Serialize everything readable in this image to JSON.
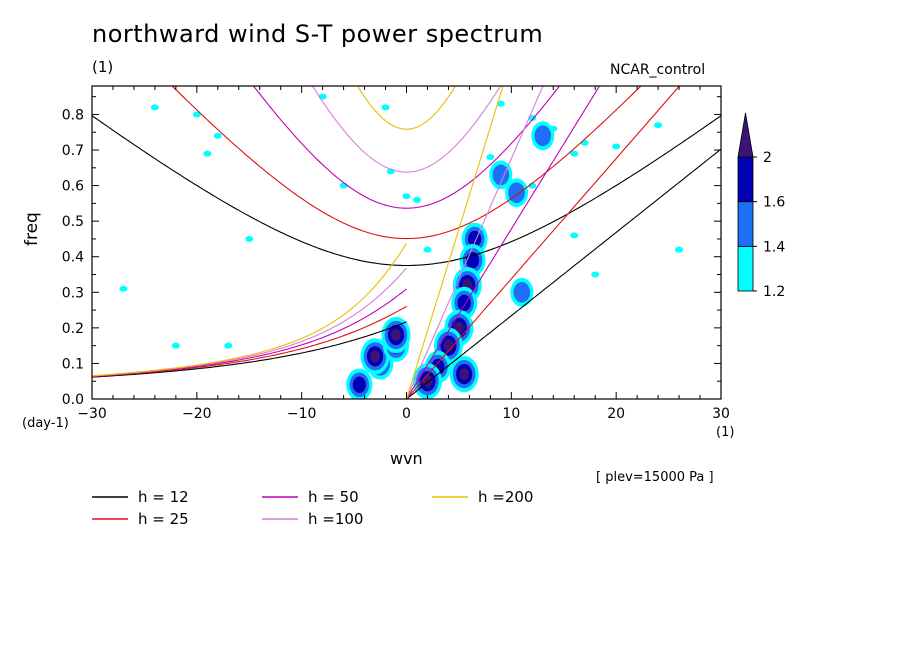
{
  "chart_data": {
    "type": "contour",
    "title": "northward wind S-T power spectrum",
    "subtitle_left": "(1)",
    "subtitle_right": "NCAR_control",
    "xlabel": "wvn",
    "ylabel": "freq",
    "x_units_left": "(day-1)",
    "x_units_right": "(1)",
    "plev_note": "[ plev=15000 Pa ]",
    "xlim": [
      -30,
      30
    ],
    "ylim": [
      0,
      0.88
    ],
    "xticks": [
      -30,
      -20,
      -10,
      0,
      10,
      20,
      30
    ],
    "xtick_labels": [
      "-30",
      "-20",
      "-10",
      "0",
      "10",
      "20",
      "30"
    ],
    "yticks": [
      0,
      0.1,
      0.2,
      0.3,
      0.4,
      0.5,
      0.6,
      0.7,
      0.8
    ],
    "ytick_labels": [
      "0.0",
      "0.1",
      "0.2",
      "0.3",
      "0.4",
      "0.5",
      "0.6",
      "0.7",
      "0.8"
    ],
    "colorbar": {
      "levels": [
        1.2,
        1.4,
        1.6,
        2
      ],
      "labels": [
        "1.2",
        "1.4",
        "1.6",
        "2"
      ],
      "colors": [
        "#00ffff",
        "#1e6ff5",
        "#0000b4",
        "#3c1478"
      ]
    },
    "series": [
      {
        "name": "h = 12",
        "color": "#000000"
      },
      {
        "name": "h = 25",
        "color": "#e01010"
      },
      {
        "name": "h = 50",
        "color": "#c000b8"
      },
      {
        "name": "h =100",
        "color": "#d77fdc"
      },
      {
        "name": "h =200",
        "color": "#e8c000"
      }
    ],
    "spectral_blobs": [
      {
        "k": 6.5,
        "f": 0.45,
        "level": 1.6
      },
      {
        "k": 6.3,
        "f": 0.39,
        "level": 1.6
      },
      {
        "k": 5.8,
        "f": 0.32,
        "level": 2
      },
      {
        "k": 5.5,
        "f": 0.27,
        "level": 1.6
      },
      {
        "k": 5.0,
        "f": 0.2,
        "level": 2
      },
      {
        "k": 4.0,
        "f": 0.15,
        "level": 2
      },
      {
        "k": 3.0,
        "f": 0.09,
        "level": 1.6
      },
      {
        "k": 2.0,
        "f": 0.05,
        "level": 2
      },
      {
        "k": 5.5,
        "f": 0.07,
        "level": 2
      },
      {
        "k": -2.5,
        "f": 0.1,
        "level": 1.6
      },
      {
        "k": -3.0,
        "f": 0.12,
        "level": 2
      },
      {
        "k": -1.0,
        "f": 0.15,
        "level": 1.6
      },
      {
        "k": -1.0,
        "f": 0.18,
        "level": 2
      },
      {
        "k": -4.5,
        "f": 0.04,
        "level": 1.6
      },
      {
        "k": 9.0,
        "f": 0.63,
        "level": 1.4
      },
      {
        "k": 13.0,
        "f": 0.74,
        "level": 1.4
      },
      {
        "k": 10.5,
        "f": 0.58,
        "level": 1.4
      },
      {
        "k": 11.0,
        "f": 0.3,
        "level": 1.4
      }
    ],
    "speckles": [
      {
        "k": -24,
        "f": 0.82
      },
      {
        "k": -20,
        "f": 0.8
      },
      {
        "k": -18,
        "f": 0.74
      },
      {
        "k": -19,
        "f": 0.69
      },
      {
        "k": -8,
        "f": 0.85
      },
      {
        "k": -2,
        "f": 0.82
      },
      {
        "k": -1.5,
        "f": 0.64
      },
      {
        "k": 0,
        "f": 0.57
      },
      {
        "k": 1,
        "f": 0.56
      },
      {
        "k": -6,
        "f": 0.6
      },
      {
        "k": 2,
        "f": 0.42
      },
      {
        "k": -15,
        "f": 0.45
      },
      {
        "k": -27,
        "f": 0.31
      },
      {
        "k": -17,
        "f": 0.15
      },
      {
        "k": -22,
        "f": 0.15
      },
      {
        "k": 12,
        "f": 0.79
      },
      {
        "k": 14,
        "f": 0.76
      },
      {
        "k": 16,
        "f": 0.69
      },
      {
        "k": 17,
        "f": 0.72
      },
      {
        "k": 20,
        "f": 0.71
      },
      {
        "k": 24,
        "f": 0.77
      },
      {
        "k": 26,
        "f": 0.42
      },
      {
        "k": 16,
        "f": 0.46
      },
      {
        "k": 12,
        "f": 0.6
      },
      {
        "k": 9,
        "f": 0.83
      },
      {
        "k": 18,
        "f": 0.35
      },
      {
        "k": 8,
        "f": 0.68
      }
    ]
  }
}
